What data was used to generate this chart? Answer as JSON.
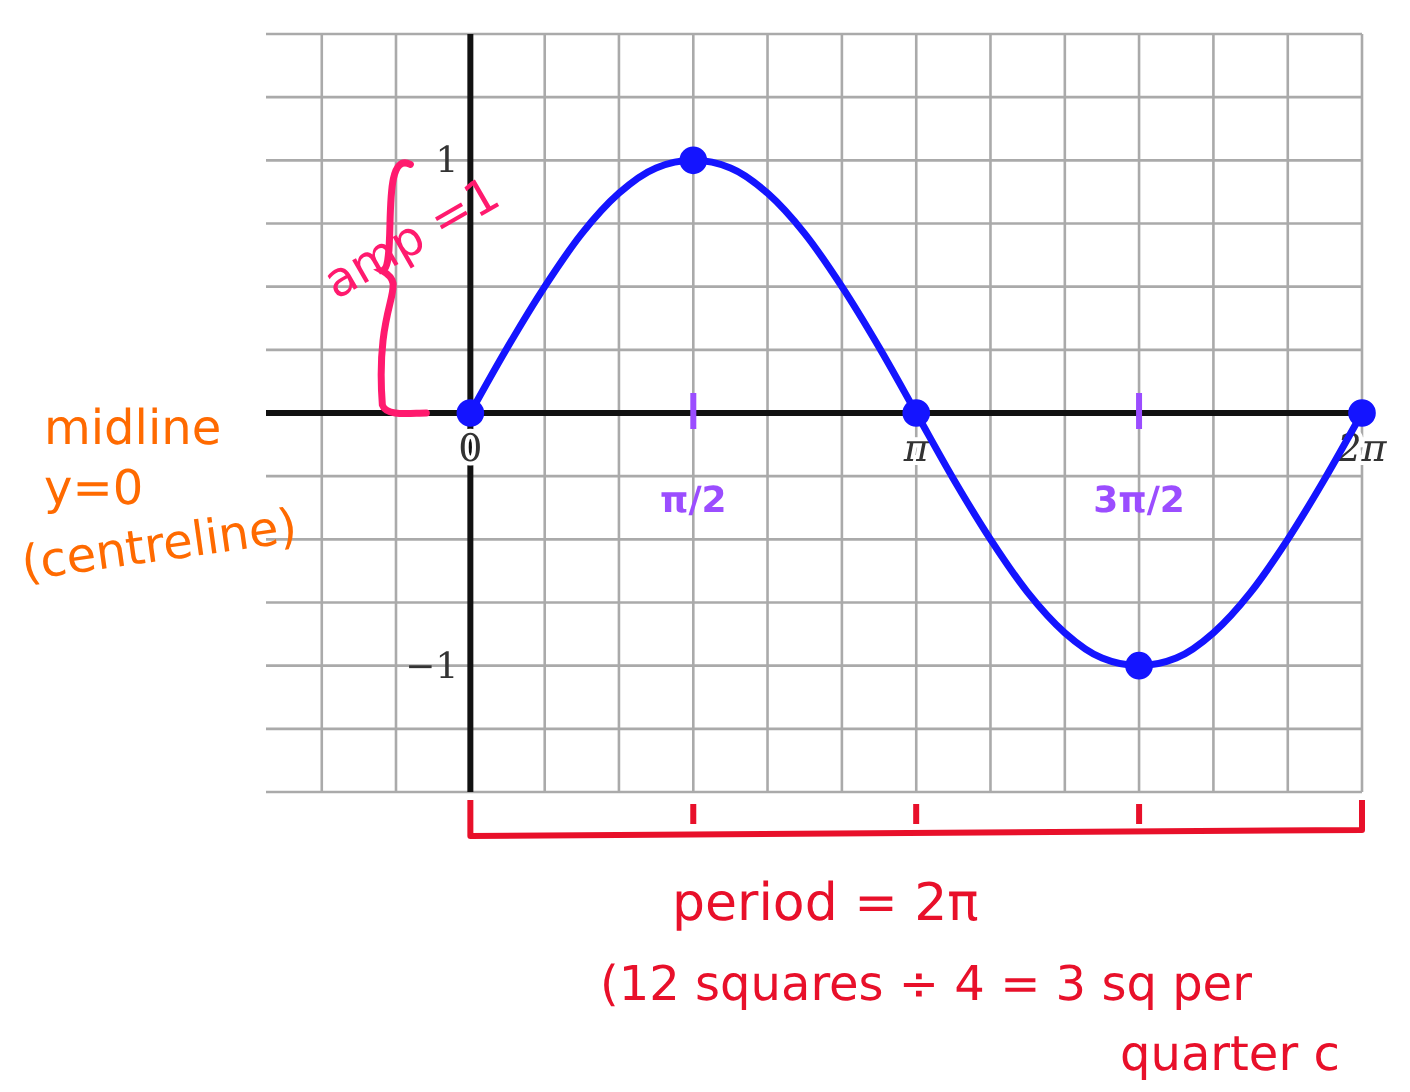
{
  "chart_data": {
    "type": "line",
    "xlim": [
      -1.44,
      6.283
    ],
    "ylim": [
      -1.5,
      1.5
    ],
    "xticks": [
      {
        "value": -1.047,
        "label": null
      },
      {
        "value": -0.524,
        "label": null
      },
      0,
      {
        "value": 0.524,
        "label": null
      },
      {
        "value": 1.047,
        "label": null
      },
      {
        "value": 1.571,
        "label": null
      },
      {
        "value": 2.094,
        "label": null
      },
      {
        "value": 2.618,
        "label": null
      },
      {
        "value": 3.142,
        "label": "π"
      },
      {
        "value": 3.665,
        "label": null
      },
      {
        "value": 4.189,
        "label": null
      },
      {
        "value": 4.712,
        "label": null
      },
      {
        "value": 5.236,
        "label": null
      },
      {
        "value": 5.76,
        "label": null
      },
      {
        "value": 6.283,
        "label": "2π"
      }
    ],
    "yticks": [
      {
        "value": -1.5,
        "label": null
      },
      {
        "value": -1.25,
        "label": null
      },
      {
        "value": -1,
        "label": "−1"
      },
      {
        "value": -0.75,
        "label": null
      },
      {
        "value": -0.5,
        "label": null
      },
      {
        "value": -0.25,
        "label": null
      },
      {
        "value": 0,
        "label": null
      },
      {
        "value": 0.25,
        "label": null
      },
      {
        "value": 0.5,
        "label": null
      },
      {
        "value": 0.75,
        "label": null
      },
      1,
      {
        "value": 1.25,
        "label": null
      },
      {
        "value": 1.5,
        "label": null
      }
    ],
    "grid": true,
    "series": [
      {
        "type": "line",
        "marker": "none",
        "color": "#1414ff",
        "x": [
          0,
          0.262,
          0.524,
          0.785,
          1.047,
          1.309,
          1.571,
          1.833,
          2.094,
          2.356,
          2.618,
          2.88,
          3.142,
          3.403,
          3.665,
          3.927,
          4.189,
          4.451,
          4.712,
          4.974,
          5.236,
          5.498,
          5.76,
          6.021,
          6.283
        ],
        "values": [
          0,
          0.26,
          0.5,
          0.71,
          0.87,
          0.97,
          1,
          0.97,
          0.87,
          0.71,
          0.5,
          0.26,
          0,
          -0.26,
          -0.5,
          -0.71,
          -0.87,
          -0.97,
          -1,
          -0.97,
          -0.87,
          -0.71,
          -0.5,
          -0.26,
          0
        ]
      },
      {
        "type": "scatter",
        "marker": "circle",
        "color": "#1414ff",
        "x": [
          0,
          1.571,
          3.142,
          4.712,
          6.283
        ],
        "values": [
          0,
          1,
          0,
          -1,
          0
        ]
      }
    ],
    "annotations": [
      "π/2",
      "3π/2",
      "amp =1",
      "midline",
      "y=0",
      "(centreline)",
      "period = 2π",
      "(12 squares ÷ 4 = 3 sq per",
      "quarter c"
    ]
  }
}
